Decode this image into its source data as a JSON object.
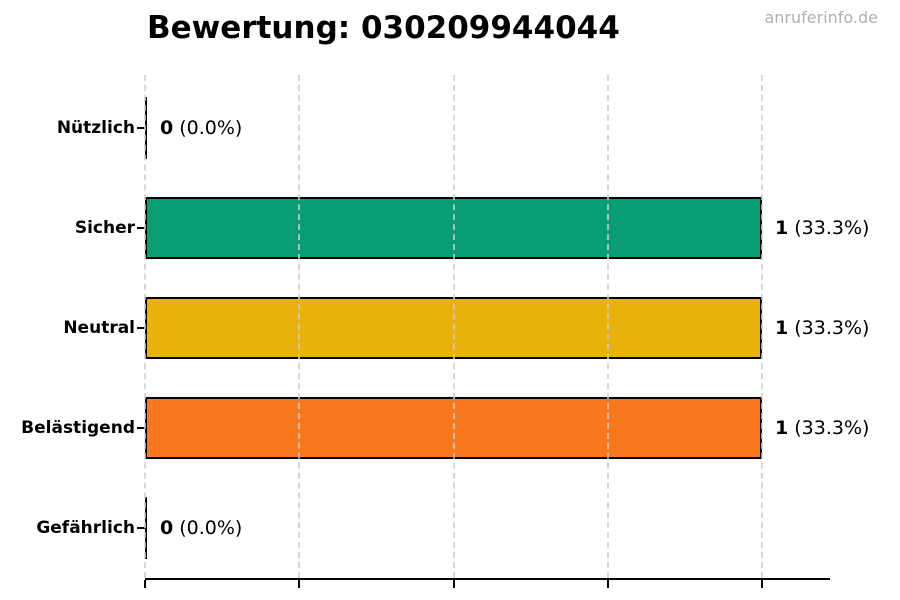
{
  "watermark": {
    "text": "anruferinfo.de",
    "color": "#b0b0b0"
  },
  "chart_data": {
    "type": "bar",
    "orientation": "horizontal",
    "title": "Bewertung: 030209944044",
    "categories": [
      "Nützlich",
      "Sicher",
      "Neutral",
      "Belästigend",
      "Gefährlich"
    ],
    "values": [
      0,
      1,
      1,
      1,
      0
    ],
    "rows": [
      {
        "label": "Nützlich",
        "value": "0",
        "pct_label": "(0.0%)",
        "value_num": 0,
        "color": "#000000"
      },
      {
        "label": "Sicher",
        "value": "1",
        "pct_label": "(33.3%)",
        "value_num": 1,
        "color": "#089d73"
      },
      {
        "label": "Neutral",
        "value": "1",
        "pct_label": "(33.3%)",
        "value_num": 1,
        "color": "#e8b10c"
      },
      {
        "label": "Belästigend",
        "value": "1",
        "pct_label": "(33.3%)",
        "value_num": 1,
        "color": "#f8791d"
      },
      {
        "label": "Gefährlich",
        "value": "0",
        "pct_label": "(0.0%)",
        "value_num": 0,
        "color": "#000000"
      }
    ],
    "xlabel": "",
    "ylabel": "",
    "x_ticks": [
      0,
      0.25,
      0.5,
      0.75,
      1
    ],
    "xlim": [
      0,
      1.11
    ],
    "grid": true,
    "legend": "none",
    "bar_border_color": "#000000",
    "grid_color": "#cdcdcd",
    "axis_color": "#000000"
  }
}
